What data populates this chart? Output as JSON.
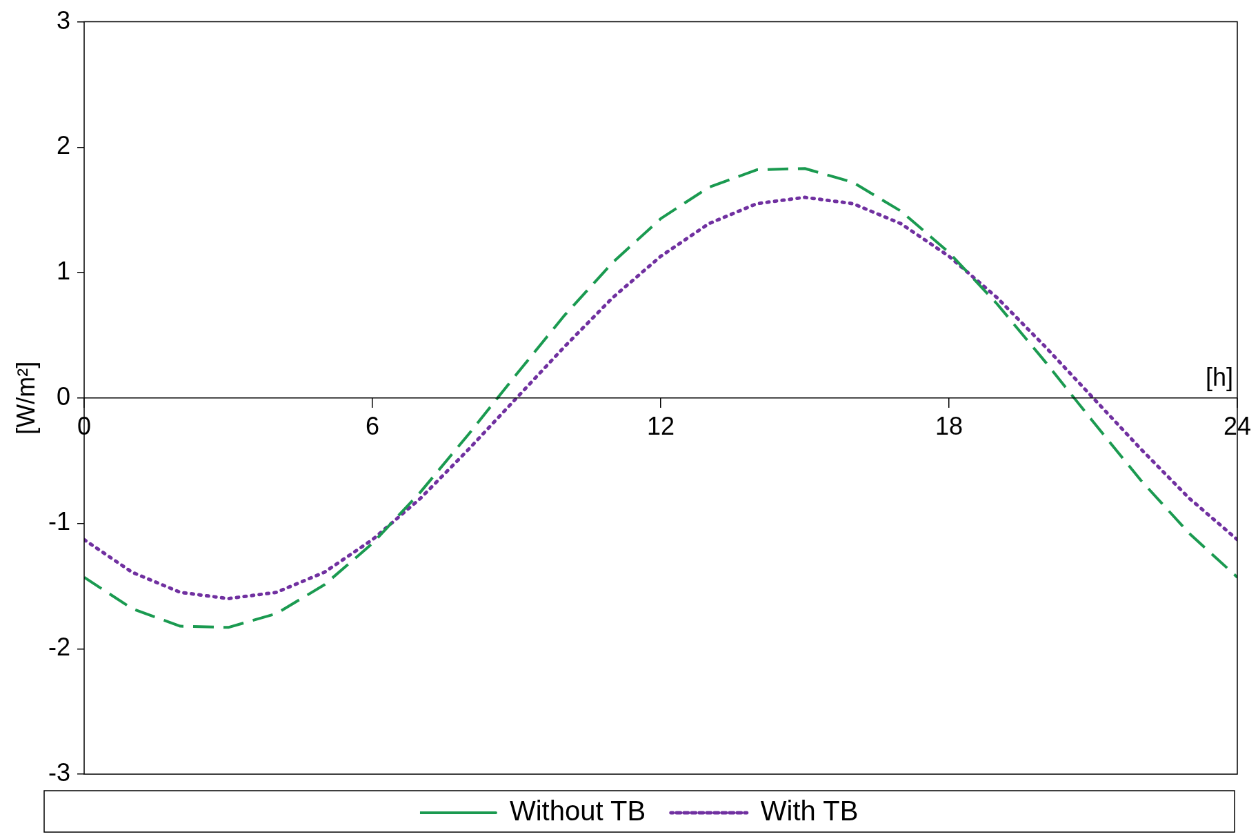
{
  "chart_data": {
    "type": "line",
    "xlabel": "[h]",
    "ylabel": "[W/m²]",
    "x": [
      0,
      1,
      2,
      3,
      4,
      5,
      6,
      7,
      8,
      9,
      10,
      11,
      12,
      13,
      14,
      15,
      16,
      17,
      18,
      19,
      20,
      21,
      22,
      23,
      24
    ],
    "series": [
      {
        "name": "Without TB",
        "color": "#1a9a50",
        "line_style": "dashed",
        "values": [
          -1.43,
          -1.68,
          -1.82,
          -1.83,
          -1.72,
          -1.49,
          -1.16,
          -0.75,
          -0.29,
          0.19,
          0.66,
          1.08,
          1.43,
          1.68,
          1.82,
          1.83,
          1.72,
          1.49,
          1.16,
          0.75,
          0.29,
          -0.19,
          -0.66,
          -1.08,
          -1.43
        ]
      },
      {
        "name": "With TB",
        "color": "#7030a0",
        "line_style": "dotted",
        "values": [
          -1.13,
          -1.39,
          -1.55,
          -1.6,
          -1.55,
          -1.39,
          -1.13,
          -0.8,
          -0.41,
          0,
          0.41,
          0.8,
          1.13,
          1.39,
          1.55,
          1.6,
          1.55,
          1.39,
          1.13,
          0.8,
          0.41,
          0,
          -0.41,
          -0.8,
          -1.13
        ]
      }
    ],
    "xlim": [
      0,
      24
    ],
    "xticks": [
      0,
      6,
      12,
      18,
      24
    ],
    "ylim": [
      -3,
      3
    ],
    "yticks": [
      -3,
      -2,
      -1,
      0,
      1,
      2,
      3
    ],
    "grid": false,
    "legend": "bottom",
    "marker": "none"
  }
}
